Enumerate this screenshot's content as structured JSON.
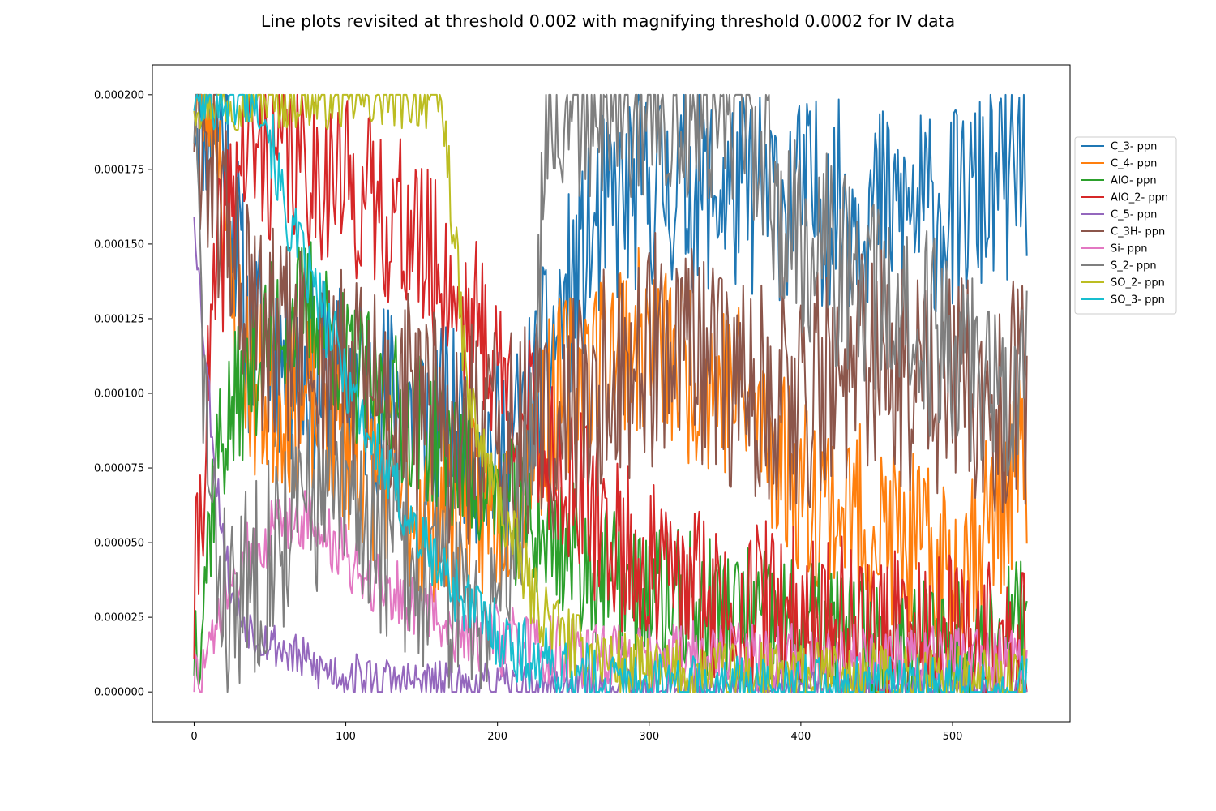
{
  "title": "Line plots revisited at threshold 0.002 with magnifying threshold 0.0002 for IV data",
  "chart_data": {
    "type": "line",
    "title": "Line plots revisited at threshold 0.002 with magnifying threshold 0.0002 for IV data",
    "xlabel": "",
    "ylabel": "",
    "xlim": [
      -27.5,
      577.5
    ],
    "ylim": [
      -1e-05,
      0.00021
    ],
    "xticks": [
      0,
      100,
      200,
      300,
      400,
      500
    ],
    "xtick_labels": [
      "0",
      "100",
      "200",
      "300",
      "400",
      "500"
    ],
    "yticks": [
      0,
      2.5e-05,
      5e-05,
      7.5e-05,
      0.0001,
      0.000125,
      0.00015,
      0.000175,
      0.0002
    ],
    "ytick_labels": [
      "0.000000",
      "0.000025",
      "0.000050",
      "0.000075",
      "0.000100",
      "0.000125",
      "0.000150",
      "0.000175",
      "0.000200"
    ],
    "grid": false,
    "legend_position": "right, outside plot area",
    "x": {
      "start": 0,
      "end": 549,
      "step": 1
    },
    "series": [
      {
        "name": "C_3- ppn",
        "color": "#1f77b4",
        "seed": 11,
        "keypoints": [
          [
            0,
            0.0002
          ],
          [
            20,
            0.00019
          ],
          [
            35,
            0.00012
          ],
          [
            80,
            0.000105
          ],
          [
            120,
            0.0001
          ],
          [
            160,
            9e-05
          ],
          [
            200,
            8e-05
          ],
          [
            215,
            8.5e-05
          ],
          [
            225,
            0.0001
          ],
          [
            245,
            0.00013
          ],
          [
            270,
            0.00016
          ],
          [
            300,
            0.00017
          ],
          [
            400,
            0.000165
          ],
          [
            500,
            0.00016
          ],
          [
            549,
            0.000176
          ]
        ],
        "noise": 3.5e-05,
        "clip": [
          0,
          0.0002
        ]
      },
      {
        "name": "C_4- ppn",
        "color": "#ff7f0e",
        "seed": 23,
        "keypoints": [
          [
            0,
            0.0002
          ],
          [
            14,
            0.0002
          ],
          [
            25,
            0.00013
          ],
          [
            40,
            0.0001
          ],
          [
            80,
            9.5e-05
          ],
          [
            110,
            8e-05
          ],
          [
            150,
            6e-05
          ],
          [
            200,
            6e-05
          ],
          [
            240,
            0.0001
          ],
          [
            280,
            0.00012
          ],
          [
            320,
            0.00011
          ],
          [
            360,
            0.0001
          ],
          [
            400,
            7e-05
          ],
          [
            450,
            5.5e-05
          ],
          [
            500,
            4e-05
          ],
          [
            549,
            7.8e-05
          ]
        ],
        "noise": 3.2e-05,
        "clip": [
          0,
          0.0002
        ]
      },
      {
        "name": "AlO- ppn",
        "color": "#2ca02c",
        "seed": 37,
        "keypoints": [
          [
            0,
            1.8e-05
          ],
          [
            5,
            3e-05
          ],
          [
            15,
            8e-05
          ],
          [
            30,
            0.0001
          ],
          [
            50,
            0.00012
          ],
          [
            80,
            0.00013
          ],
          [
            100,
            0.00011
          ],
          [
            120,
            0.0001
          ],
          [
            150,
            9e-05
          ],
          [
            180,
            7.5e-05
          ],
          [
            210,
            6e-05
          ],
          [
            240,
            5e-05
          ],
          [
            280,
            3.5e-05
          ],
          [
            320,
            3e-05
          ],
          [
            400,
            2e-05
          ],
          [
            500,
            1.5e-05
          ],
          [
            549,
            2e-05
          ]
        ],
        "noise": 2.5e-05,
        "clip": [
          0,
          0.0002
        ]
      },
      {
        "name": "AlO_2- ppn",
        "color": "#d62728",
        "seed": 41,
        "keypoints": [
          [
            0,
            2.6e-05
          ],
          [
            4,
            6e-05
          ],
          [
            15,
            0.00014
          ],
          [
            30,
            0.00018
          ],
          [
            60,
            0.00018
          ],
          [
            100,
            0.00017
          ],
          [
            140,
            0.000155
          ],
          [
            170,
            0.000135
          ],
          [
            190,
            0.00012
          ],
          [
            220,
            9e-05
          ],
          [
            260,
            6e-05
          ],
          [
            300,
            4e-05
          ],
          [
            350,
            3e-05
          ],
          [
            450,
            2e-05
          ],
          [
            549,
            1.2e-05
          ]
        ],
        "noise": 3e-05,
        "clip": [
          0,
          0.0002
        ]
      },
      {
        "name": "C_5- ppn",
        "color": "#9467bd",
        "seed": 53,
        "keypoints": [
          [
            0,
            0.000163
          ],
          [
            3,
            0.00014
          ],
          [
            8,
            0.00011
          ],
          [
            15,
            7e-05
          ],
          [
            25,
            3e-05
          ],
          [
            40,
            2e-05
          ],
          [
            80,
            8e-06
          ],
          [
            120,
            4e-06
          ],
          [
            180,
            2e-06
          ],
          [
            220,
            1e-06
          ],
          [
            549,
            0
          ]
        ],
        "noise": 8e-06,
        "clip": [
          0,
          0.0002
        ]
      },
      {
        "name": "C_3H- ppn",
        "color": "#8c564b",
        "seed": 61,
        "keypoints": [
          [
            0,
            0.0002
          ],
          [
            20,
            0.00016
          ],
          [
            40,
            0.00012
          ],
          [
            80,
            0.00011
          ],
          [
            120,
            0.0001
          ],
          [
            200,
            8e-05
          ],
          [
            240,
            9e-05
          ],
          [
            300,
            0.000115
          ],
          [
            350,
            0.000105
          ],
          [
            400,
            0.0001
          ],
          [
            450,
            0.00011
          ],
          [
            500,
            0.0001
          ],
          [
            549,
            9.8e-05
          ]
        ],
        "noise": 4e-05,
        "clip": [
          0,
          0.0002
        ]
      },
      {
        "name": "Si- ppn",
        "color": "#e377c2",
        "seed": 73,
        "keypoints": [
          [
            0,
            2e-06
          ],
          [
            10,
            1e-05
          ],
          [
            20,
            3e-05
          ],
          [
            40,
            5e-05
          ],
          [
            70,
            6e-05
          ],
          [
            100,
            4.5e-05
          ],
          [
            140,
            3e-05
          ],
          [
            180,
            2e-05
          ],
          [
            220,
            1.5e-05
          ],
          [
            260,
            1.2e-05
          ],
          [
            300,
            1.2e-05
          ],
          [
            549,
            1e-05
          ]
        ],
        "noise": 1.2e-05,
        "clip": [
          0,
          0.0002
        ]
      },
      {
        "name": "S_2- ppn",
        "color": "#7f7f7f",
        "seed": 83,
        "keypoints": [
          [
            0,
            0.0002
          ],
          [
            5,
            0.00012
          ],
          [
            12,
            5e-05
          ],
          [
            25,
            2.5e-05
          ],
          [
            50,
            5e-05
          ],
          [
            80,
            6.5e-05
          ],
          [
            110,
            6e-05
          ],
          [
            150,
            4e-05
          ],
          [
            190,
            3e-05
          ],
          [
            210,
            5e-05
          ],
          [
            225,
            0.0001
          ],
          [
            232,
            0.0002
          ],
          [
            360,
            0.0002
          ],
          [
            380,
            0.000165
          ],
          [
            450,
            0.00013
          ],
          [
            500,
            0.000115
          ],
          [
            549,
            0.0001
          ]
        ],
        "noise": 3.5e-05,
        "clip": [
          0,
          0.0002
        ]
      },
      {
        "name": "SO_2- ppn",
        "color": "#bcbd22",
        "seed": 97,
        "keypoints": [
          [
            0,
            0.0002
          ],
          [
            160,
            0.0002
          ],
          [
            165,
            0.00019
          ],
          [
            172,
            0.00015
          ],
          [
            180,
            0.0001
          ],
          [
            190,
            8e-05
          ],
          [
            210,
            5e-05
          ],
          [
            225,
            3e-05
          ],
          [
            250,
            1.5e-05
          ],
          [
            300,
            6e-06
          ],
          [
            549,
            3e-06
          ]
        ],
        "noise": 1.2e-05,
        "clip": [
          0,
          0.0002
        ]
      },
      {
        "name": "SO_3- ppn",
        "color": "#17becf",
        "seed": 101,
        "keypoints": [
          [
            0,
            0.0002
          ],
          [
            45,
            0.0002
          ],
          [
            60,
            0.00016
          ],
          [
            90,
            0.00012
          ],
          [
            120,
            8e-05
          ],
          [
            150,
            5e-05
          ],
          [
            180,
            3e-05
          ],
          [
            210,
            1.5e-05
          ],
          [
            250,
            5e-06
          ],
          [
            300,
            1e-06
          ],
          [
            549,
            0
          ]
        ],
        "noise": 1.2e-05,
        "clip": [
          0,
          0.0002
        ]
      }
    ]
  }
}
